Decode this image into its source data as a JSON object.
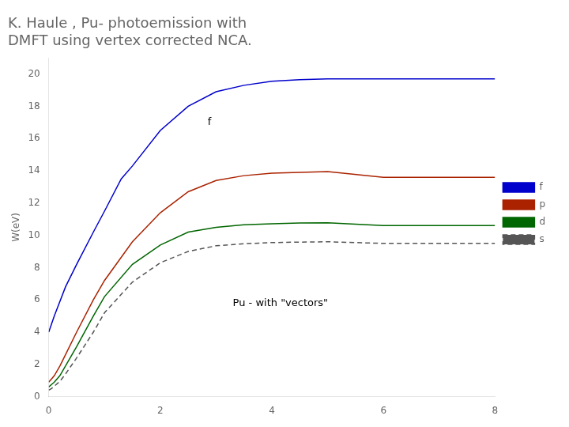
{
  "chart_data": {
    "type": "line",
    "title": [
      "K. Haule , Pu- photoemission with",
      "DMFT using vertex corrected NCA."
    ],
    "y_label": "W(eV)",
    "xlim": [
      0,
      8
    ],
    "ylim": [
      0,
      21
    ],
    "xticks": [
      0,
      2,
      4,
      6,
      8
    ],
    "yticks": [
      0,
      2,
      4,
      6,
      8,
      10,
      12,
      14,
      16,
      18,
      20
    ],
    "grid": false,
    "legend": "right",
    "annotations": [
      {
        "text": "f",
        "x": 2.85,
        "y": 17.0
      },
      {
        "text": "Pu - with \"vectors\"",
        "x": 3.3,
        "y": 5.8
      }
    ],
    "series": [
      {
        "name": "f",
        "color": "#0000cc",
        "line_style": "solid",
        "x": [
          0,
          0.05,
          0.1,
          0.2,
          0.3,
          0.5,
          0.8,
          1.0,
          1.3,
          1.5,
          2.0,
          2.5,
          3.0,
          3.5,
          4.0,
          4.5,
          5.0,
          6.0,
          7.0,
          8.0
        ],
        "values": [
          4.0,
          4.5,
          5.0,
          5.9,
          6.8,
          8.2,
          10.2,
          11.5,
          13.5,
          14.3,
          16.5,
          18.0,
          18.9,
          19.3,
          19.55,
          19.65,
          19.7,
          19.7,
          19.7,
          19.7
        ]
      },
      {
        "name": "p",
        "color": "#aa2200",
        "line_style": "solid",
        "x": [
          0,
          0.05,
          0.1,
          0.2,
          0.3,
          0.5,
          0.8,
          1.0,
          1.5,
          2.0,
          2.5,
          3.0,
          3.5,
          4.0,
          4.5,
          5.0,
          6.0,
          7.0,
          8.0
        ],
        "values": [
          0.9,
          1.1,
          1.3,
          1.9,
          2.6,
          4.0,
          6.0,
          7.2,
          9.6,
          11.4,
          12.7,
          13.4,
          13.7,
          13.85,
          13.9,
          13.95,
          13.6,
          13.6,
          13.6
        ]
      },
      {
        "name": "d",
        "color": "#006600",
        "line_style": "solid",
        "x": [
          0,
          0.05,
          0.1,
          0.2,
          0.3,
          0.5,
          0.8,
          1.0,
          1.5,
          2.0,
          2.5,
          3.0,
          3.5,
          4.0,
          4.5,
          5.0,
          6.0,
          7.0,
          8.0
        ],
        "values": [
          0.6,
          0.75,
          0.9,
          1.3,
          1.9,
          3.1,
          5.0,
          6.2,
          8.2,
          9.4,
          10.2,
          10.5,
          10.65,
          10.72,
          10.76,
          10.78,
          10.6,
          10.6,
          10.6
        ]
      },
      {
        "name": "s",
        "color": "#555555",
        "line_style": "dashed",
        "x": [
          0,
          0.05,
          0.1,
          0.2,
          0.3,
          0.5,
          0.8,
          1.0,
          1.5,
          2.0,
          2.5,
          3.0,
          3.5,
          4.0,
          4.5,
          5.0,
          6.0,
          7.0,
          8.0
        ],
        "values": [
          0.4,
          0.5,
          0.65,
          0.95,
          1.4,
          2.4,
          4.0,
          5.2,
          7.1,
          8.3,
          9.0,
          9.35,
          9.48,
          9.55,
          9.58,
          9.6,
          9.5,
          9.5,
          9.5
        ]
      }
    ]
  }
}
